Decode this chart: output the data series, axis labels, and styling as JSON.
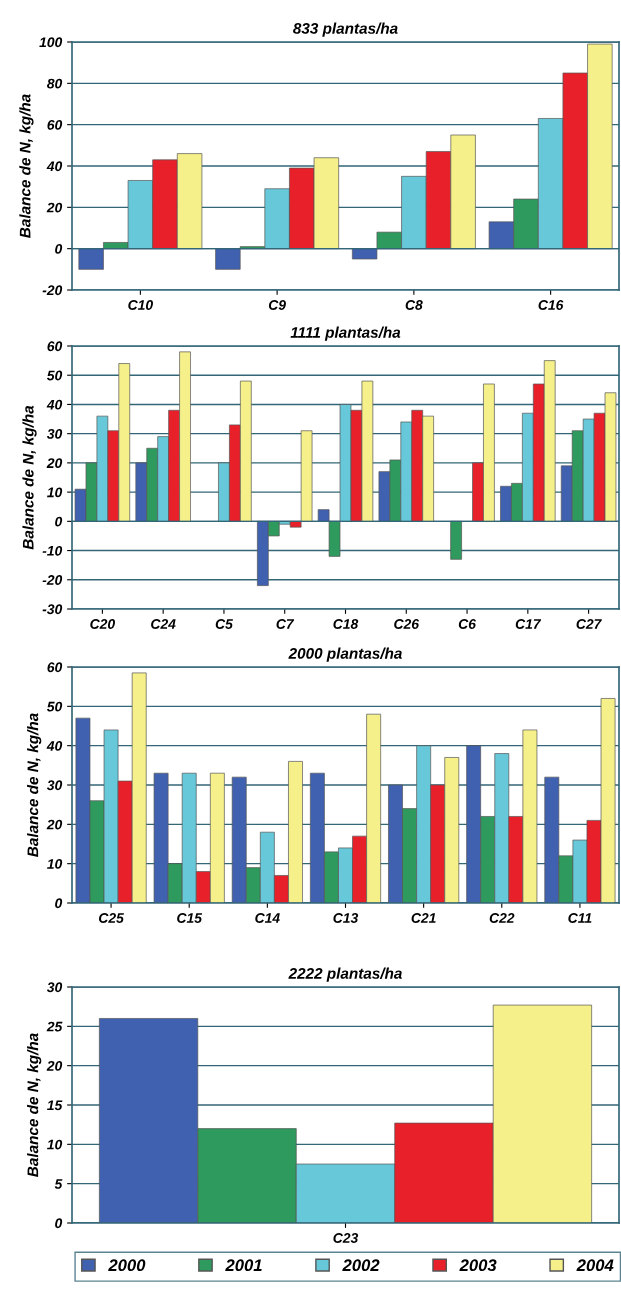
{
  "chart_data": [
    {
      "type": "bar",
      "title": "833 plantas/ha",
      "ylabel": "Balance de N, kg/ha",
      "categories": [
        "C10",
        "C9",
        "C8",
        "C16"
      ],
      "ylim": [
        -20,
        100
      ],
      "yticks": [
        -20,
        0,
        20,
        40,
        60,
        80,
        100
      ],
      "grid": "y",
      "legend": false,
      "series": [
        {
          "color": "#4060b0",
          "values": [
            -10,
            -10,
            -5,
            13
          ]
        },
        {
          "color": "#2e9a5e",
          "values": [
            3,
            1,
            8,
            24
          ]
        },
        {
          "color": "#66c8d8",
          "values": [
            33,
            29,
            35,
            63
          ]
        },
        {
          "color": "#e8202a",
          "values": [
            43,
            39,
            47,
            85
          ]
        },
        {
          "color": "#f5f08a",
          "values": [
            46,
            44,
            55,
            99
          ]
        }
      ]
    },
    {
      "type": "bar",
      "title": "1111 plantas/ha",
      "ylabel": "Balance de N, kg/ha",
      "categories": [
        "C20",
        "C24",
        "C5",
        "C7",
        "C18",
        "C26",
        "C6",
        "C17",
        "C27"
      ],
      "ylim": [
        -30,
        60
      ],
      "yticks": [
        -30,
        -20,
        -10,
        0,
        10,
        20,
        30,
        40,
        50,
        60
      ],
      "grid": "y",
      "legend": false,
      "series": [
        {
          "color": "#4060b0",
          "values": [
            11,
            20,
            null,
            -22,
            4,
            17,
            null,
            12,
            19
          ]
        },
        {
          "color": "#2e9a5e",
          "values": [
            20,
            25,
            null,
            -5,
            -12,
            21,
            -13,
            13,
            31
          ]
        },
        {
          "color": "#66c8d8",
          "values": [
            36,
            29,
            20,
            -1,
            40,
            34,
            null,
            37,
            35
          ]
        },
        {
          "color": "#e8202a",
          "values": [
            31,
            38,
            33,
            -2,
            38,
            38,
            20,
            47,
            37
          ]
        },
        {
          "color": "#f5f08a",
          "values": [
            54,
            58,
            48,
            31,
            48,
            36,
            47,
            55,
            44
          ]
        }
      ]
    },
    {
      "type": "bar",
      "title": "2000 plantas/ha",
      "ylabel": "Balance de N, kg/ha",
      "categories": [
        "C25",
        "C15",
        "C14",
        "C13",
        "C21",
        "C22",
        "C11"
      ],
      "ylim": [
        0,
        60
      ],
      "yticks": [
        0,
        10,
        20,
        30,
        40,
        50,
        60
      ],
      "grid": "y",
      "legend": false,
      "series": [
        {
          "color": "#4060b0",
          "values": [
            47,
            33,
            32,
            33,
            30,
            40,
            32
          ]
        },
        {
          "color": "#2e9a5e",
          "values": [
            26,
            10,
            9,
            13,
            24,
            22,
            12
          ]
        },
        {
          "color": "#66c8d8",
          "values": [
            44,
            33,
            18,
            14,
            40,
            38,
            16
          ]
        },
        {
          "color": "#e8202a",
          "values": [
            31,
            8,
            7,
            17,
            30,
            22,
            21
          ]
        },
        {
          "color": "#f5f08a",
          "values": [
            58.5,
            33,
            36,
            48,
            37,
            44,
            52
          ]
        }
      ]
    },
    {
      "type": "bar",
      "title": "2222 plantas/ha",
      "ylabel": "Balance de N, kg/ha",
      "categories": [
        "C23"
      ],
      "ylim": [
        0,
        30
      ],
      "yticks": [
        0,
        5,
        10,
        15,
        20,
        25,
        30
      ],
      "grid": "y",
      "legend": "bottom",
      "series": [
        {
          "name": "2000",
          "color": "#4060b0",
          "values": [
            26
          ]
        },
        {
          "name": "2001",
          "color": "#2e9a5e",
          "values": [
            12
          ]
        },
        {
          "name": "2002",
          "color": "#66c8d8",
          "values": [
            7.5
          ]
        },
        {
          "name": "2003",
          "color": "#e8202a",
          "values": [
            12.7
          ]
        },
        {
          "name": "2004",
          "color": "#f5f08a",
          "values": [
            27.7
          ]
        }
      ]
    }
  ]
}
